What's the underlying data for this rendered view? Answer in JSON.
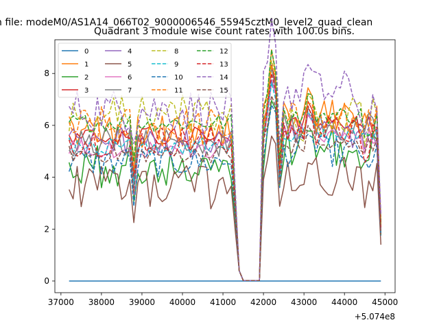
{
  "chart_data": {
    "type": "line",
    "title": "n file: modeM0/AS1A14_066T02_9000006546_55945cztM0_level2_quad_clean",
    "subtitle": "Quadrant 3 module wise count rates with 100.0s bins.",
    "xlabel": "",
    "ylabel": "",
    "x_offset_label": "+5.074e8",
    "x_ticks": [
      "37000",
      "38000",
      "39000",
      "40000",
      "41000",
      "42000",
      "43000",
      "44000",
      "45000"
    ],
    "y_ticks": [
      "0",
      "2",
      "4",
      "6",
      "8"
    ],
    "xlim": [
      36850,
      45250
    ],
    "ylim": [
      -0.45,
      9.3
    ],
    "grid": false,
    "legend_placement": "top-left",
    "legend_columns": 4,
    "time_model": {
      "x_start": 37200,
      "x_step": 100,
      "n_points": 78,
      "gap_start": 41400,
      "gap_end": 41900,
      "gap_floor": 0.02
    },
    "series": [
      {
        "name": "0",
        "color": "#1f77b4",
        "dashed": false,
        "base1": 0.0,
        "base2": 0.0
      },
      {
        "name": "1",
        "color": "#ff7f0e",
        "dashed": false,
        "base1": 5.8,
        "base2": 6.4
      },
      {
        "name": "2",
        "color": "#2ca02c",
        "dashed": false,
        "base1": 4.4,
        "base2": 5.1
      },
      {
        "name": "3",
        "color": "#d62728",
        "dashed": false,
        "base1": 5.6,
        "base2": 6.0
      },
      {
        "name": "4",
        "color": "#9467bd",
        "dashed": false,
        "base1": 5.3,
        "base2": 5.7
      },
      {
        "name": "5",
        "color": "#8c564b",
        "dashed": false,
        "base1": 3.6,
        "base2": 4.0
      },
      {
        "name": "6",
        "color": "#e377c2",
        "dashed": false,
        "base1": 5.1,
        "base2": 5.6
      },
      {
        "name": "7",
        "color": "#7f7f7f",
        "dashed": false,
        "base1": 5.4,
        "base2": 5.9
      },
      {
        "name": "8",
        "color": "#bcbd22",
        "dashed": true,
        "base1": 6.4,
        "base2": 6.2
      },
      {
        "name": "9",
        "color": "#17becf",
        "dashed": true,
        "base1": 5.2,
        "base2": 5.6
      },
      {
        "name": "10",
        "color": "#1f77b4",
        "dashed": true,
        "base1": 4.6,
        "base2": 5.0
      },
      {
        "name": "11",
        "color": "#ff7f0e",
        "dashed": true,
        "base1": 5.9,
        "base2": 6.1
      },
      {
        "name": "12",
        "color": "#2ca02c",
        "dashed": true,
        "base1": 6.1,
        "base2": 6.4
      },
      {
        "name": "13",
        "color": "#d62728",
        "dashed": true,
        "base1": 5.4,
        "base2": 5.8
      },
      {
        "name": "14",
        "color": "#9467bd",
        "dashed": true,
        "base1": 6.6,
        "base2": 7.3
      },
      {
        "name": "15",
        "color": "#8c564b",
        "dashed": true,
        "base1": 4.9,
        "base2": 5.2
      }
    ]
  }
}
